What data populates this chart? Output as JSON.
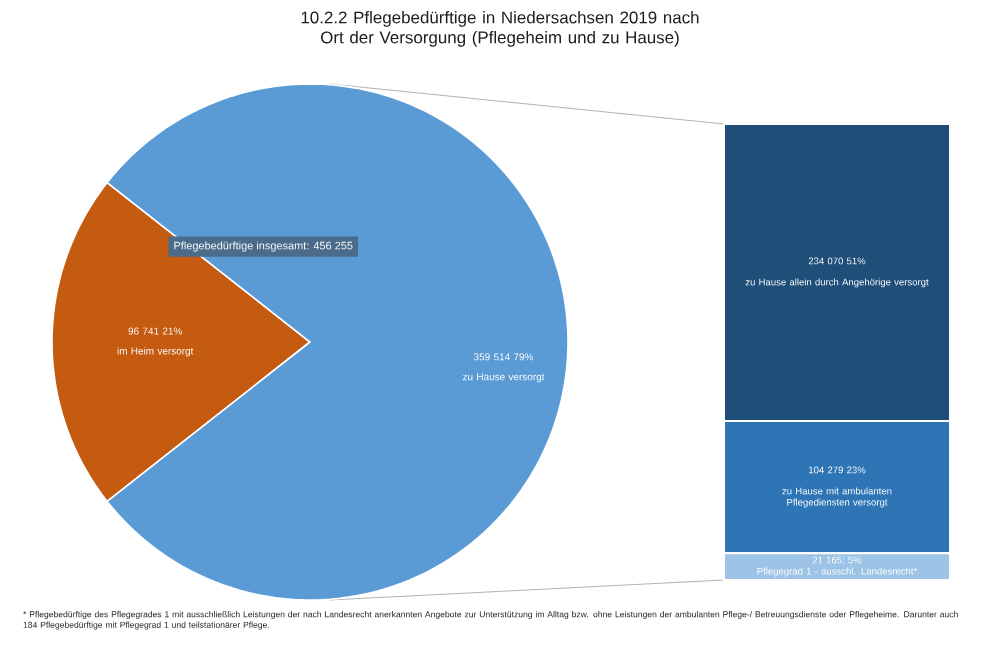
{
  "chart_data": [
    {
      "type": "pie",
      "title": "10.2.2 Pflegebedürftige in Niedersachsen 2019 nach Ort der Versorgung (Pflegeheim und zu Hause)",
      "categories": [
        "im Heim versorgt",
        "zu Hause versorgt"
      ],
      "values": [
        96741,
        359514
      ],
      "colors": [
        "#c55a11",
        "#5b9bd5"
      ],
      "value_labels": [
        "96 741 21%",
        "359 514 79%"
      ],
      "annotations": [
        "Pflegebedürftige insgesamt: 456 255",
        "* Pflegebedürftige des Pflegegrades 1 mit ausschließlich Leistungen der nach Landesrecht anerkannten Angebote zur Unterstützung im Alltag bzw. ohne Leistungen der ambulanten Pflege-/ Betreuungsdienste oder Pflegeheime. Darunter auch 184 Pflegebedürftige mit Pflegegrad 1 und teilstationärer Pflege."
      ]
    },
    {
      "type": "bar",
      "stacked": true,
      "categories": [
        null
      ],
      "series": [
        {
          "name": "Pflegegrad 1 - ausschl. Landesrecht*",
          "color": "#9dc3e6",
          "values": [
            21165
          ],
          "value_labels": [
            "21 165; 5%"
          ]
        },
        {
          "name": "zu Hause mit ambulanten Pflegediensten versorgt",
          "color": "#2e75b6",
          "values": [
            104279
          ],
          "value_labels": [
            "104 279 23%"
          ]
        },
        {
          "name": "zu Hause allein durch Angehörige versorgt",
          "color": "#1f4e79",
          "values": [
            234070
          ],
          "value_labels": [
            "234 070 51%"
          ]
        }
      ]
    }
  ]
}
